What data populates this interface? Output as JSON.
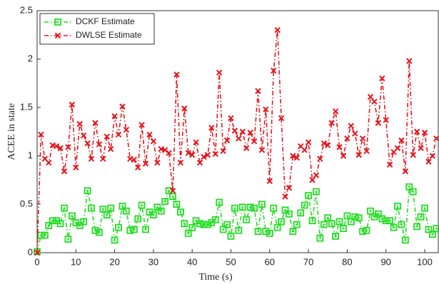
{
  "chart_data": {
    "type": "line",
    "xlabel": "Time (s)",
    "ylabel": "ACEE in state",
    "x": [
      0,
      1,
      2,
      3,
      4,
      5,
      6,
      7,
      8,
      9,
      10,
      11,
      12,
      13,
      14,
      15,
      16,
      17,
      18,
      19,
      20,
      21,
      22,
      23,
      24,
      25,
      26,
      27,
      28,
      29,
      30,
      31,
      32,
      33,
      34,
      35,
      36,
      37,
      38,
      39,
      40,
      41,
      42,
      43,
      44,
      45,
      46,
      47,
      48,
      49,
      50,
      51,
      52,
      53,
      54,
      55,
      56,
      57,
      58,
      59,
      60,
      61,
      62,
      63,
      64,
      65,
      66,
      67,
      68,
      69,
      70,
      71,
      72,
      73,
      74,
      75,
      76,
      77,
      78,
      79,
      80,
      81,
      82,
      83,
      84,
      85,
      86,
      87,
      88,
      89,
      90,
      91,
      92,
      93,
      94,
      95,
      96,
      97,
      98,
      99,
      100,
      101,
      102,
      103
    ],
    "series": [
      {
        "name": "DCKF Estimate",
        "color": "#22dd22",
        "marker": "square",
        "values": [
          0.01,
          0.18,
          0.18,
          0.28,
          0.33,
          0.33,
          0.3,
          0.46,
          0.14,
          0.38,
          0.31,
          0.28,
          0.32,
          0.64,
          0.46,
          0.23,
          0.21,
          0.45,
          0.39,
          0.46,
          0.13,
          0.26,
          0.48,
          0.43,
          0.23,
          0.24,
          0.35,
          0.49,
          0.24,
          0.42,
          0.39,
          0.47,
          0.43,
          0.53,
          0.64,
          0.58,
          0.5,
          0.42,
          0.3,
          0.2,
          0.26,
          0.33,
          0.3,
          0.29,
          0.29,
          0.31,
          0.34,
          0.52,
          0.24,
          0.29,
          0.17,
          0.46,
          0.23,
          0.47,
          0.34,
          0.47,
          0.46,
          0.22,
          0.5,
          0.22,
          0.2,
          0.46,
          0.26,
          0.32,
          0.44,
          0.4,
          0.22,
          0.29,
          0.41,
          0.49,
          0.59,
          0.33,
          0.63,
          0.15,
          0.29,
          0.36,
          0.3,
          0.17,
          0.32,
          0.25,
          0.38,
          0.32,
          0.37,
          0.36,
          0.22,
          0.23,
          0.43,
          0.37,
          0.4,
          0.35,
          0.33,
          0.33,
          0.26,
          0.48,
          0.29,
          0.13,
          0.68,
          0.63,
          0.27,
          0.37,
          0.46,
          0.24,
          0.19,
          0.25
        ]
      },
      {
        "name": "DWLSE Estimate",
        "color": "#e8141b",
        "marker": "x",
        "values": [
          0,
          1.22,
          0.97,
          0.93,
          1.11,
          1.1,
          1.08,
          0.84,
          1.09,
          1.53,
          0.88,
          1.33,
          1.21,
          1.13,
          0.97,
          1.34,
          1.12,
          0.97,
          1.2,
          1.07,
          1.41,
          1.22,
          1.51,
          1.27,
          0.97,
          0.96,
          0.88,
          1.32,
          0.92,
          1.22,
          1.15,
          0.93,
          1.07,
          1.06,
          1.03,
          0.64,
          1.84,
          0.93,
          1.49,
          1.03,
          1.01,
          1.14,
          0.93,
          0.99,
          1.01,
          1.29,
          1.02,
          1.86,
          1.05,
          1.16,
          1.39,
          1.26,
          1.18,
          1.25,
          1.08,
          1.24,
          1.15,
          1.67,
          1.06,
          1.48,
          0.74,
          1.88,
          2.3,
          1.39,
          0.58,
          0.67,
          1.0,
          0.98,
          1.1,
          1.06,
          1.14,
          0.75,
          0.8,
          0.97,
          1.13,
          1.11,
          1.34,
          1.46,
          1.09,
          1.0,
          1.18,
          1.31,
          1.23,
          1.01,
          1.18,
          1.05,
          1.61,
          1.56,
          1.34,
          1.8,
          1.37,
          0.91,
          1.04,
          1.08,
          1.16,
          0.84,
          1.98,
          1.01,
          1.25,
          1.08,
          1.24,
          0.94,
          1.0,
          1.18
        ]
      }
    ],
    "xlim": [
      0,
      103.5
    ],
    "ylim": [
      0,
      2.5
    ],
    "xticks": [
      0,
      10,
      20,
      30,
      40,
      50,
      60,
      70,
      80,
      90,
      100
    ],
    "yticks": [
      0,
      0.5,
      1,
      1.5,
      2,
      2.5
    ],
    "legend": "upper left"
  }
}
